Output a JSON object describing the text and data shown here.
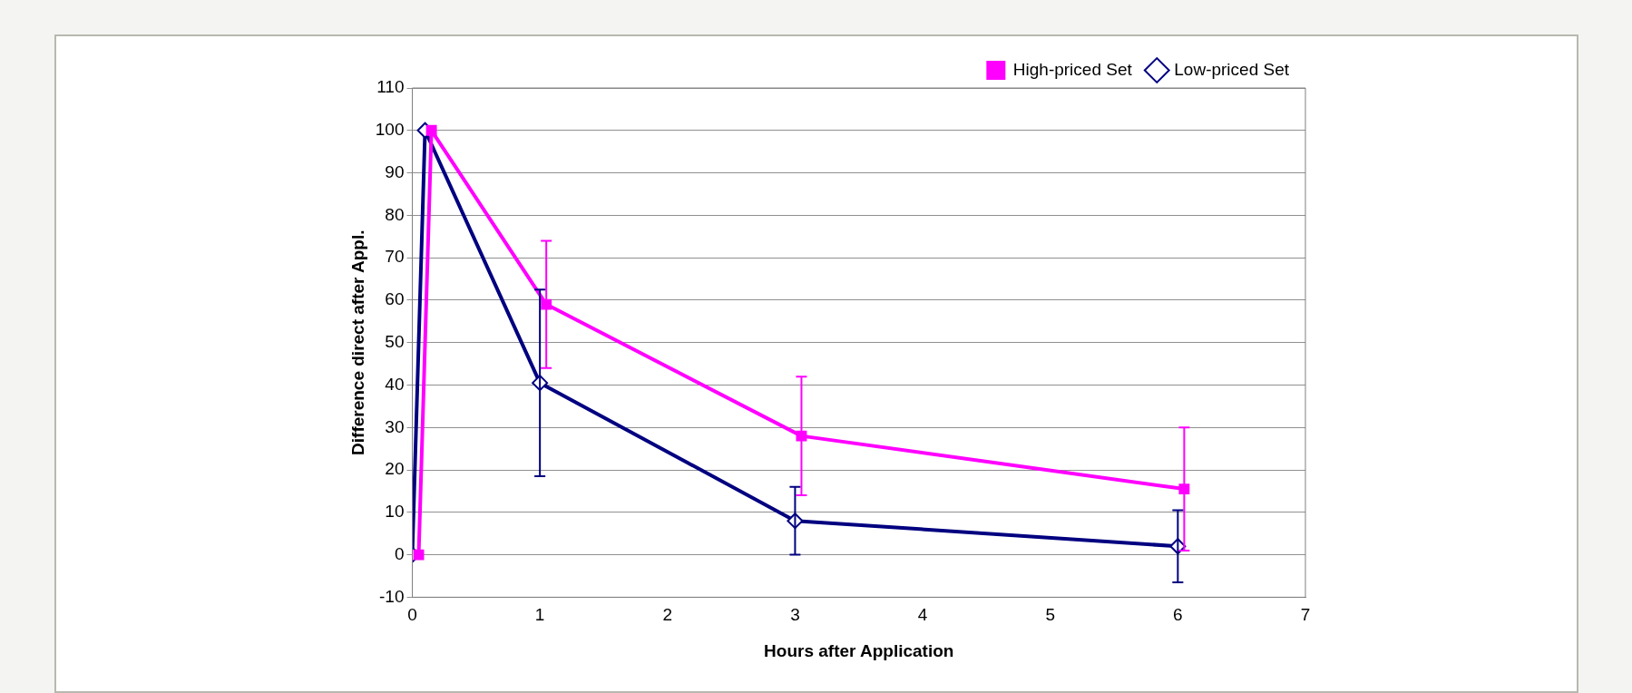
{
  "chart_data": {
    "type": "line",
    "xlabel": "Hours after Application",
    "ylabel": "Difference direct after Appl.",
    "xlim": [
      0,
      7
    ],
    "xticks": [
      0,
      1,
      2,
      3,
      4,
      5,
      6,
      7
    ],
    "ylim": [
      -10,
      110
    ],
    "yticks": [
      -10,
      0,
      10,
      20,
      30,
      40,
      50,
      60,
      70,
      80,
      90,
      100,
      110
    ],
    "grid": "y",
    "legend": "top right",
    "line_style": "solid",
    "series": [
      {
        "name": "High-priced Set",
        "color": "#ff00ff",
        "marker": "square",
        "x": [
          0.05,
          0.15,
          1.05,
          3.05,
          6.05
        ],
        "values": [
          0,
          100,
          59,
          28,
          15.5
        ],
        "errors": [
          null,
          null,
          15,
          14,
          14.5
        ]
      },
      {
        "name": "Low-priced Set",
        "color": "#000080",
        "marker": "diamond",
        "x": [
          0,
          0.1,
          1,
          3,
          6
        ],
        "values": [
          0,
          100,
          40.5,
          8,
          2
        ],
        "errors": [
          null,
          null,
          22,
          8,
          8.5
        ]
      }
    ]
  }
}
